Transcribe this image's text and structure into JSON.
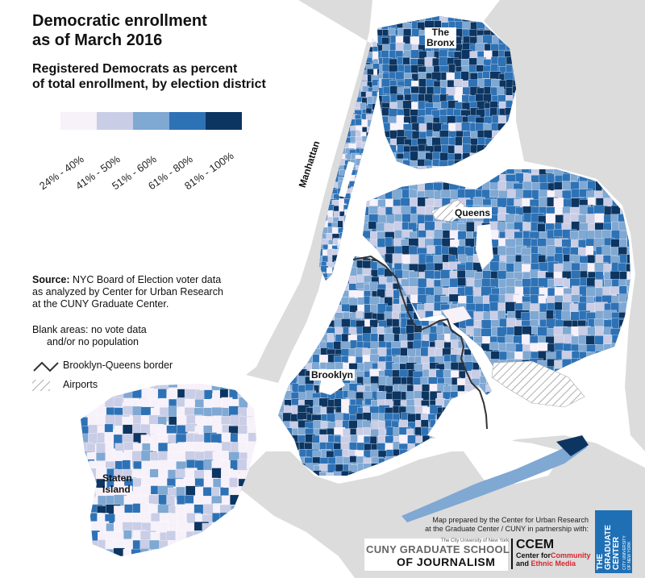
{
  "title": {
    "line1": "Democratic enrollment",
    "line2": "as of March 2016"
  },
  "subtitle": {
    "line1": "Registered Democrats as percent",
    "line2": "of total enrollment, by election district"
  },
  "legend": {
    "classes": [
      {
        "label": "24% - 40%",
        "color": "#f7f1fa"
      },
      {
        "label": "41% - 50%",
        "color": "#c9cde6"
      },
      {
        "label": "51% - 60%",
        "color": "#7fa8d3"
      },
      {
        "label": "61% - 80%",
        "color": "#2e72b6"
      },
      {
        "label": "81% - 100%",
        "color": "#0d3561"
      }
    ]
  },
  "source": {
    "bold": "Source:",
    "text1": " NYC Board of Election voter data",
    "text2": "as analyzed by Center for Urban Research",
    "text3": "at the CUNY Graduate Center."
  },
  "blank_note": {
    "line1": "Blank areas: no vote data",
    "line2": "and/or no population"
  },
  "key": {
    "border_label": "Brooklyn-Queens border",
    "airports_label": "Airports"
  },
  "boroughs": {
    "bronx_1": "The",
    "bronx_2": "Bronx",
    "manhattan": "Manhattan",
    "queens": "Queens",
    "brooklyn": "Brooklyn",
    "staten_1": "Staten",
    "staten_2": "Island"
  },
  "credit": {
    "line1": "Map prepared by the Center for Urban Research",
    "line2": "at the Graduate Center / CUNY in partnership with:"
  },
  "logos": {
    "cuny_small": "The City University of New York",
    "cuny_line1": "CUNY GRADUATE SCHOOL",
    "cuny_line2": "OF JOURNALISM",
    "ccem_big": "CCEM",
    "ccem_line1a": "Center for",
    "ccem_line1b": "Community",
    "ccem_line2a": "and",
    "ccem_line2b": "Ethnic Media",
    "gc_line1": "THE",
    "gc_line2": "GRADUATE",
    "gc_line3": "CENTER",
    "gc_small1": "CITY UNIVERSITY",
    "gc_small2": "OF NEW YORK"
  },
  "colors": {
    "land_gray": "#dcdcdc",
    "water": "#ffffff",
    "border_line": "#333333"
  }
}
